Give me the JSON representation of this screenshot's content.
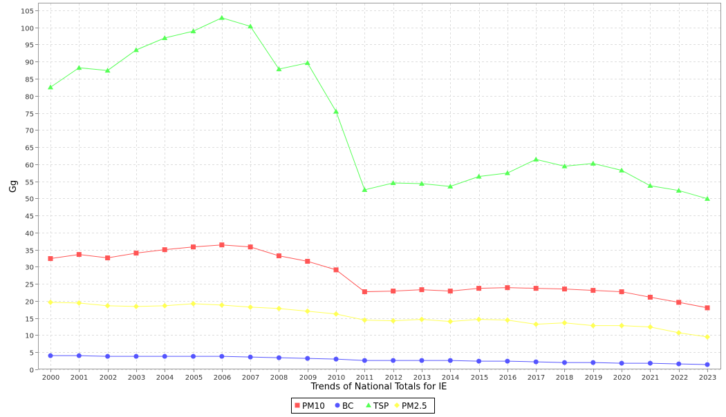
{
  "chart_data": {
    "type": "line",
    "title": "",
    "xlabel": "Trends of National Totals for IE",
    "ylabel": "Gg",
    "ylim": [
      0,
      107
    ],
    "yticks": [
      0,
      5,
      10,
      15,
      20,
      25,
      30,
      35,
      40,
      45,
      50,
      55,
      60,
      65,
      70,
      75,
      80,
      85,
      90,
      95,
      100,
      105
    ],
    "grid": true,
    "legend_position": "bottom-center",
    "categories": [
      "2000",
      "2001",
      "2002",
      "2003",
      "2004",
      "2005",
      "2006",
      "2007",
      "2008",
      "2009",
      "2010",
      "2011",
      "2012",
      "2013",
      "2014",
      "2015",
      "2016",
      "2017",
      "2018",
      "2019",
      "2020",
      "2021",
      "2022",
      "2023"
    ],
    "series": [
      {
        "name": "PM10",
        "color": "#ff5555",
        "marker": "square",
        "values": [
          32.4,
          33.6,
          32.6,
          34.0,
          35.0,
          35.8,
          36.4,
          35.8,
          33.2,
          31.6,
          29.1,
          22.7,
          22.9,
          23.3,
          22.9,
          23.7,
          23.9,
          23.7,
          23.5,
          23.1,
          22.7,
          21.1,
          19.6,
          18.0
        ]
      },
      {
        "name": "BC",
        "color": "#5555ff",
        "marker": "circle",
        "values": [
          4.0,
          4.0,
          3.8,
          3.8,
          3.8,
          3.8,
          3.8,
          3.6,
          3.4,
          3.2,
          3.0,
          2.6,
          2.6,
          2.6,
          2.6,
          2.4,
          2.4,
          2.2,
          2.0,
          2.0,
          1.8,
          1.8,
          1.6,
          1.4
        ]
      },
      {
        "name": "TSP",
        "color": "#55ff55",
        "marker": "triangle",
        "values": [
          82.5,
          88.2,
          87.4,
          93.4,
          96.9,
          98.9,
          102.8,
          100.3,
          87.8,
          89.6,
          75.4,
          52.5,
          54.5,
          54.3,
          53.5,
          56.4,
          57.4,
          61.4,
          59.4,
          60.2,
          58.2,
          53.7,
          52.3,
          49.9
        ]
      },
      {
        "name": "PM2.5",
        "color": "#ffff55",
        "marker": "diamond",
        "values": [
          19.6,
          19.4,
          18.6,
          18.4,
          18.6,
          19.2,
          18.8,
          18.2,
          17.8,
          17.0,
          16.2,
          14.4,
          14.2,
          14.6,
          14.0,
          14.6,
          14.4,
          13.2,
          13.6,
          12.8,
          12.8,
          12.4,
          10.7,
          9.5
        ]
      }
    ]
  }
}
